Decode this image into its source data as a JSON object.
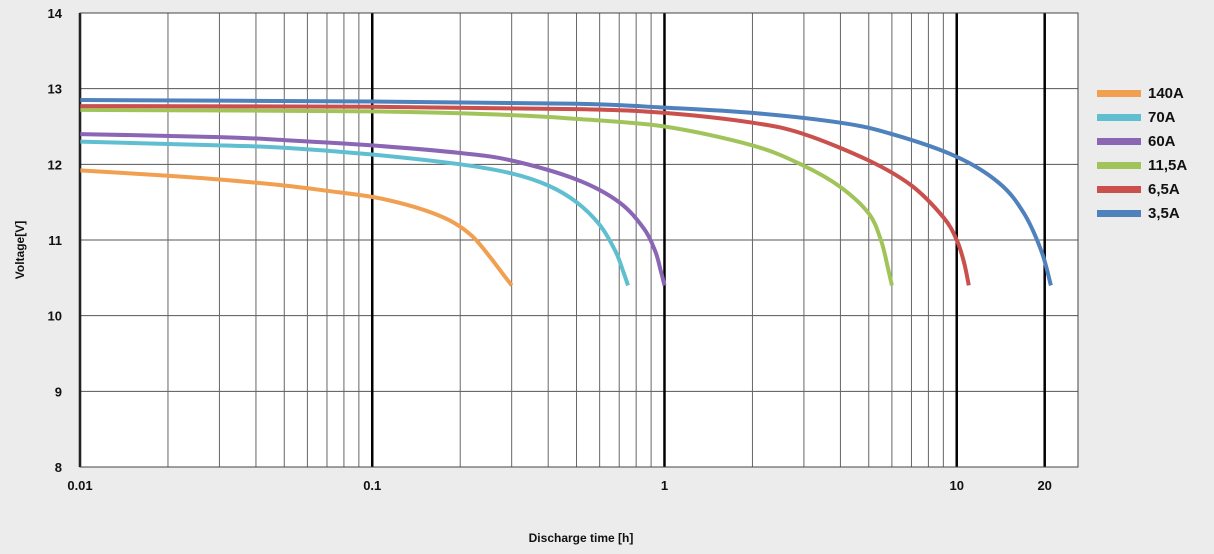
{
  "chart_data": {
    "type": "line",
    "title": "",
    "xlabel": "Discharge time [h]",
    "ylabel": "Voltage[V]",
    "x_scale": "log",
    "xlim": [
      0.01,
      26
    ],
    "ylim": [
      8,
      14
    ],
    "grid": true,
    "legend_position": "right",
    "x_ticks": [
      {
        "value": 0.01,
        "label": "0.01"
      },
      {
        "value": 0.1,
        "label": "0.1"
      },
      {
        "value": 1,
        "label": "1"
      },
      {
        "value": 10,
        "label": "10"
      },
      {
        "value": 20,
        "label": "20"
      }
    ],
    "y_ticks": [
      8,
      9,
      10,
      11,
      12,
      13,
      14
    ],
    "series": [
      {
        "name": "140A",
        "color": "#f0a050",
        "points": [
          [
            0.01,
            11.92
          ],
          [
            0.02,
            11.85
          ],
          [
            0.03,
            11.8
          ],
          [
            0.05,
            11.72
          ],
          [
            0.07,
            11.65
          ],
          [
            0.1,
            11.57
          ],
          [
            0.13,
            11.47
          ],
          [
            0.16,
            11.36
          ],
          [
            0.19,
            11.23
          ],
          [
            0.22,
            11.05
          ],
          [
            0.25,
            10.8
          ],
          [
            0.28,
            10.55
          ],
          [
            0.3,
            10.4
          ]
        ]
      },
      {
        "name": "70A",
        "color": "#5fbfd1",
        "points": [
          [
            0.01,
            12.3
          ],
          [
            0.03,
            12.25
          ],
          [
            0.05,
            12.22
          ],
          [
            0.1,
            12.13
          ],
          [
            0.2,
            12.0
          ],
          [
            0.3,
            11.88
          ],
          [
            0.4,
            11.72
          ],
          [
            0.5,
            11.5
          ],
          [
            0.6,
            11.2
          ],
          [
            0.68,
            10.85
          ],
          [
            0.72,
            10.6
          ],
          [
            0.75,
            10.4
          ]
        ]
      },
      {
        "name": "60A",
        "color": "#8a66b5",
        "points": [
          [
            0.01,
            12.4
          ],
          [
            0.03,
            12.36
          ],
          [
            0.05,
            12.32
          ],
          [
            0.1,
            12.25
          ],
          [
            0.2,
            12.15
          ],
          [
            0.3,
            12.05
          ],
          [
            0.5,
            11.8
          ],
          [
            0.7,
            11.5
          ],
          [
            0.85,
            11.15
          ],
          [
            0.93,
            10.85
          ],
          [
            0.97,
            10.6
          ],
          [
            1.0,
            10.4
          ]
        ]
      },
      {
        "name": "11,5A",
        "color": "#a1c45a",
        "points": [
          [
            0.01,
            12.72
          ],
          [
            0.1,
            12.7
          ],
          [
            0.3,
            12.65
          ],
          [
            0.5,
            12.6
          ],
          [
            1.0,
            12.5
          ],
          [
            2.0,
            12.25
          ],
          [
            3.0,
            11.98
          ],
          [
            4.0,
            11.7
          ],
          [
            5.0,
            11.35
          ],
          [
            5.5,
            11.0
          ],
          [
            5.8,
            10.65
          ],
          [
            6.0,
            10.4
          ]
        ]
      },
      {
        "name": "6,5A",
        "color": "#c9504c",
        "points": [
          [
            0.01,
            12.77
          ],
          [
            0.1,
            12.76
          ],
          [
            0.5,
            12.73
          ],
          [
            1.0,
            12.68
          ],
          [
            2.0,
            12.55
          ],
          [
            3.0,
            12.4
          ],
          [
            5.0,
            12.05
          ],
          [
            7.0,
            11.72
          ],
          [
            9.0,
            11.3
          ],
          [
            10.0,
            11.0
          ],
          [
            10.6,
            10.7
          ],
          [
            11.0,
            10.4
          ]
        ]
      },
      {
        "name": "3,5A",
        "color": "#4f81bd",
        "points": [
          [
            0.01,
            12.85
          ],
          [
            0.1,
            12.83
          ],
          [
            0.5,
            12.8
          ],
          [
            1.0,
            12.75
          ],
          [
            2.0,
            12.68
          ],
          [
            4.0,
            12.55
          ],
          [
            6.0,
            12.4
          ],
          [
            10.0,
            12.1
          ],
          [
            14.0,
            11.75
          ],
          [
            17.0,
            11.35
          ],
          [
            19.5,
            10.85
          ],
          [
            21.0,
            10.4
          ]
        ]
      }
    ]
  }
}
